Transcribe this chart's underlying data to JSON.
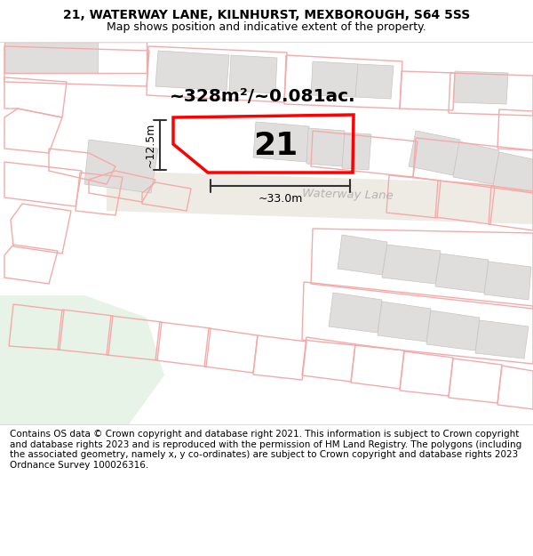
{
  "title_line1": "21, WATERWAY LANE, KILNHURST, MEXBOROUGH, S64 5SS",
  "title_line2": "Map shows position and indicative extent of the property.",
  "footer_text": "Contains OS data © Crown copyright and database right 2021. This information is subject to Crown copyright and database rights 2023 and is reproduced with the permission of HM Land Registry. The polygons (including the associated geometry, namely x, y co-ordinates) are subject to Crown copyright and database rights 2023 Ordnance Survey 100026316.",
  "area_label": "~328m²/~0.081ac.",
  "property_number": "21",
  "width_label": "~33.0m",
  "height_label": "~12.5m",
  "map_bg": "#ffffff",
  "plot_outline_color": "#ff0000",
  "building_fill": "#e0dedd",
  "building_edge": "#c8c5c2",
  "pink_outline_color": "#f5aaaa",
  "road_label": "Waterway Lane",
  "road_label_color": "#aaaaaa",
  "title_fontsize": 10,
  "footer_fontsize": 7.5,
  "green_fill": "#ddeedd"
}
